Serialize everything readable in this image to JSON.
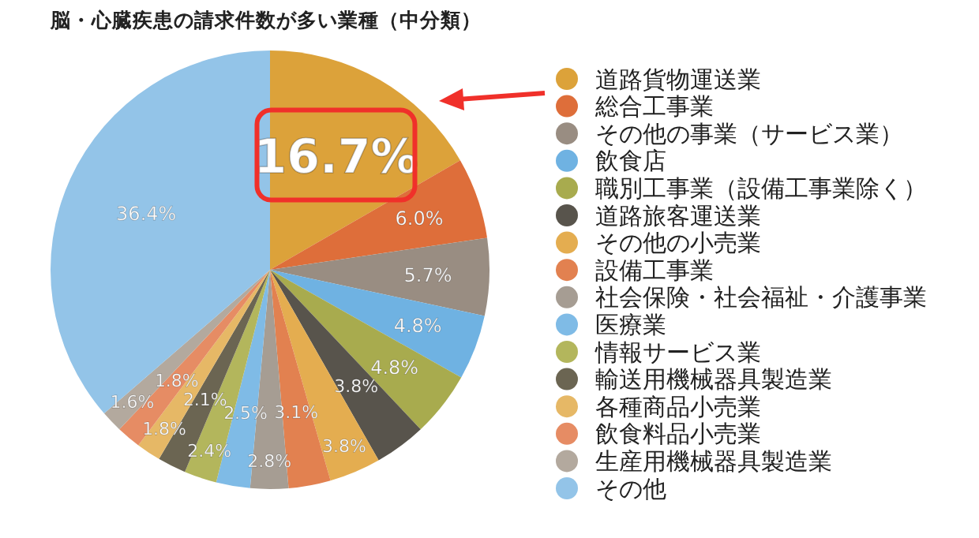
{
  "chart_data": {
    "type": "pie",
    "title": "脳・心臓疾患の請求件数が多い業種（中分類）",
    "categories": [
      "道路貨物運送業",
      "総合工事業",
      "その他の事業（サービス業）",
      "飲食店",
      "職別工事業（設備工事業除く）",
      "道路旅客運送業",
      "その他の小売業",
      "設備工事業",
      "社会保険・社会福祉・介護事業",
      "医療業",
      "情報サービス業",
      "輸送用機械器具製造業",
      "各種商品小売業",
      "飲食料品小売業",
      "生産用機械器具製造業",
      "その他"
    ],
    "values": [
      16.7,
      6.0,
      5.7,
      4.8,
      4.8,
      3.8,
      3.8,
      3.1,
      2.8,
      2.5,
      2.4,
      2.1,
      1.8,
      1.8,
      1.6,
      36.4
    ],
    "value_labels": [
      "16.7%",
      "6.0%",
      "5.7%",
      "4.8%",
      "4.8%",
      "3.8%",
      "3.8%",
      "3.1%",
      "2.8%",
      "2.5%",
      "2.4%",
      "2.1%",
      "1.8%",
      "1.8%",
      "1.6%",
      "36.4%"
    ],
    "colors": [
      "#dca23a",
      "#de6e3a",
      "#998d82",
      "#6fb2e2",
      "#a8ab4e",
      "#58544c",
      "#e4ad50",
      "#e28150",
      "#a69d93",
      "#7fbbe6",
      "#b3b65c",
      "#6b6552",
      "#e6b866",
      "#e68c64",
      "#b3a99e",
      "#93c4e8"
    ],
    "legend": "right"
  }
}
